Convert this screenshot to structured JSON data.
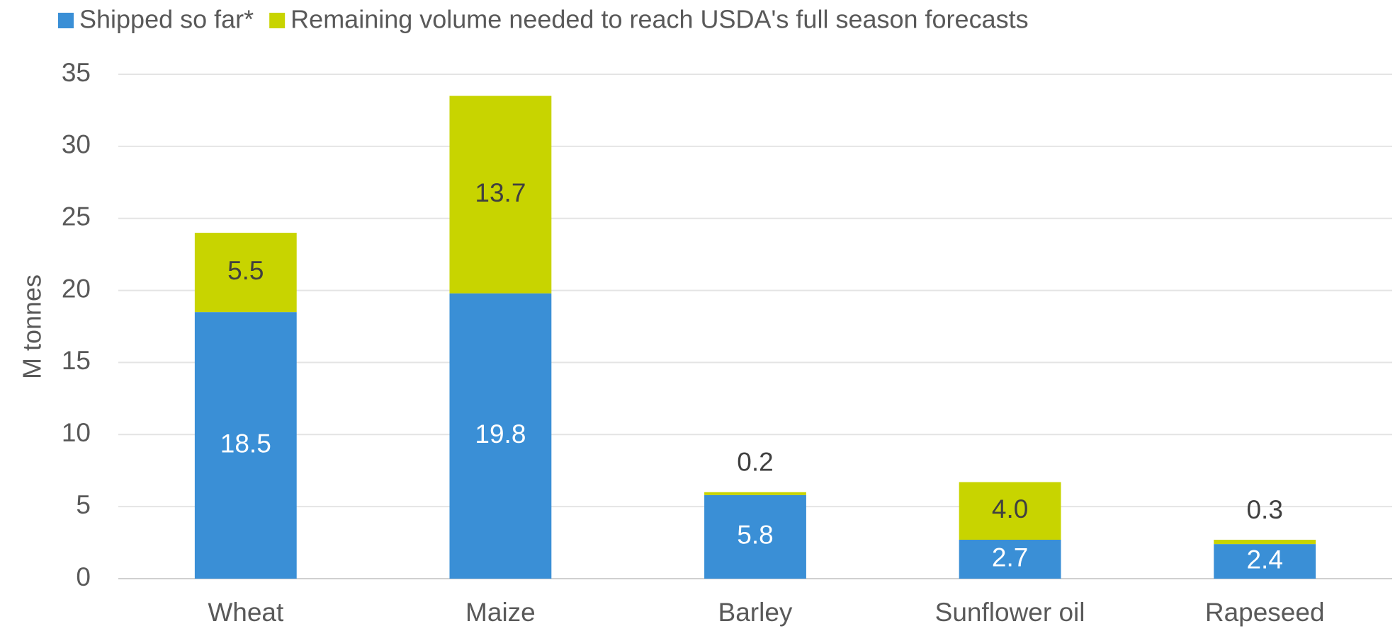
{
  "chart_data": {
    "type": "stacked_bar",
    "y_label": "M tonnes",
    "categories": [
      "Wheat",
      "Maize",
      "Barley",
      "Sunflower oil",
      "Rapeseed"
    ],
    "series": [
      {
        "name": "Shipped so far*",
        "color": "#3a8fd6",
        "values": [
          18.5,
          19.8,
          5.8,
          2.7,
          2.4
        ],
        "value_labels": [
          "18.5",
          "19.8",
          "5.8",
          "2.7",
          "2.4"
        ]
      },
      {
        "name": "Remaining volume needed to reach USDA's full season forecasts",
        "color": "#c8d400",
        "values": [
          5.5,
          13.7,
          0.2,
          4,
          0.3
        ],
        "value_labels": [
          "5.5",
          "13.7",
          "0.2",
          "4.0",
          "0.3"
        ]
      }
    ],
    "ylim": [
      0,
      35
    ],
    "yticks": [
      0,
      5,
      10,
      15,
      20,
      25,
      30,
      35
    ],
    "grid": true,
    "legend": "top"
  }
}
